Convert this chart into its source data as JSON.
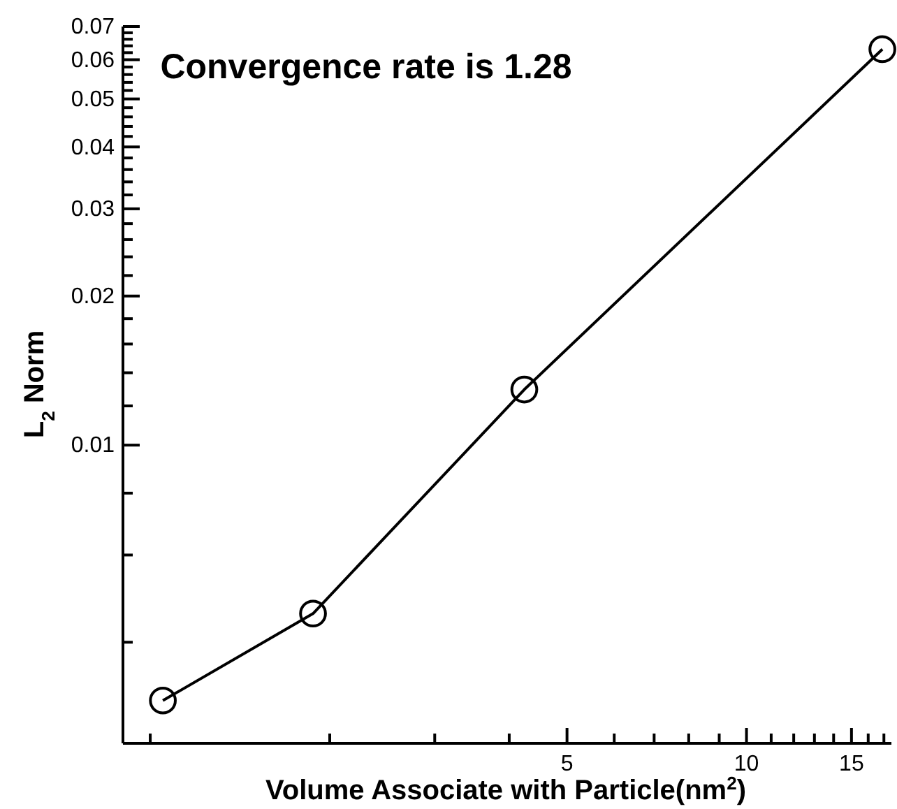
{
  "chart_data": {
    "type": "line",
    "title": "Convergence rate is 1.28",
    "xlabel": "Volume Associate with Particle(nm$^{2}$)",
    "ylabel": "L$_{2}$ Norm",
    "log": "xy",
    "marker": "circle",
    "line_style": "solid",
    "grid": false,
    "x": [
      1.05,
      1.875,
      4.24,
      16.9
    ],
    "series": [
      {
        "color": "#000000",
        "values": [
          0.00305,
          0.00457,
          0.01295,
          0.063
        ]
      }
    ],
    "xlim": [
      0.9,
      17.5
    ],
    "xticks": [
      {
        "value": 1,
        "label": null
      },
      {
        "value": 2,
        "label": null
      },
      {
        "value": 3,
        "label": null
      },
      {
        "value": 4,
        "label": null
      },
      5,
      {
        "value": 6,
        "label": null
      },
      {
        "value": 7,
        "label": null
      },
      {
        "value": 8,
        "label": null
      },
      {
        "value": 9,
        "label": null
      },
      10,
      {
        "value": 11,
        "label": null
      },
      {
        "value": 12,
        "label": null
      },
      {
        "value": 13,
        "label": null
      },
      {
        "value": 14,
        "label": null
      },
      15,
      {
        "value": 16,
        "label": null
      },
      {
        "value": 17,
        "label": null
      }
    ],
    "ylim": [
      0.0025,
      0.07
    ],
    "yticks": [
      {
        "value": 0.004,
        "label": null
      },
      {
        "value": 0.006,
        "label": null
      },
      {
        "value": 0.008,
        "label": null
      },
      0.01,
      {
        "value": 0.012,
        "label": null
      },
      {
        "value": 0.014,
        "label": null
      },
      {
        "value": 0.016,
        "label": null
      },
      {
        "value": 0.018,
        "label": null
      },
      0.02,
      {
        "value": 0.022,
        "label": null
      },
      {
        "value": 0.024,
        "label": null
      },
      {
        "value": 0.026,
        "label": null
      },
      {
        "value": 0.028,
        "label": null
      },
      0.03,
      {
        "value": 0.032,
        "label": null
      },
      {
        "value": 0.034,
        "label": null
      },
      {
        "value": 0.036,
        "label": null
      },
      {
        "value": 0.038,
        "label": null
      },
      0.04,
      {
        "value": 0.042,
        "label": null
      },
      {
        "value": 0.044,
        "label": null
      },
      {
        "value": 0.046,
        "label": null
      },
      {
        "value": 0.048,
        "label": null
      },
      0.05,
      {
        "value": 0.052,
        "label": null
      },
      {
        "value": 0.054,
        "label": null
      },
      {
        "value": 0.056,
        "label": null
      },
      {
        "value": 0.058,
        "label": null
      },
      0.06,
      {
        "value": 0.062,
        "label": null
      },
      {
        "value": 0.064,
        "label": null
      },
      {
        "value": 0.066,
        "label": null
      },
      {
        "value": 0.068,
        "label": null
      },
      0.07
    ]
  }
}
